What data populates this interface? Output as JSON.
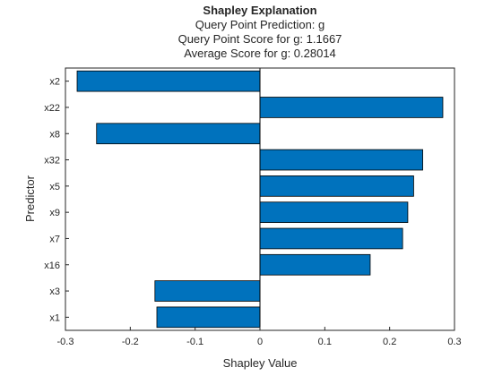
{
  "chart_data": {
    "type": "bar",
    "orientation": "horizontal",
    "title": "Shapley Explanation",
    "subtitle": [
      "Query Point Prediction: g",
      "Query Point Score for g: 1.1667",
      "Average Score for g: 0.28014"
    ],
    "xlabel": "Shapley Value",
    "ylabel": "Predictor",
    "xlim": [
      -0.3,
      0.3
    ],
    "xticks": [
      -0.3,
      -0.2,
      -0.1,
      0,
      0.1,
      0.2,
      0.3
    ],
    "xtick_labels": [
      "-0.3",
      "-0.2",
      "-0.1",
      "0",
      "0.1",
      "0.2",
      "0.3"
    ],
    "categories": [
      "x2",
      "x22",
      "x8",
      "x32",
      "x5",
      "x9",
      "x7",
      "x16",
      "x3",
      "x1"
    ],
    "values": [
      -0.282,
      0.282,
      -0.252,
      0.251,
      0.237,
      0.228,
      0.22,
      0.17,
      -0.162,
      -0.159
    ],
    "grid": false,
    "bar_color": "#0072BD",
    "bar_edge_color": "#000000"
  }
}
